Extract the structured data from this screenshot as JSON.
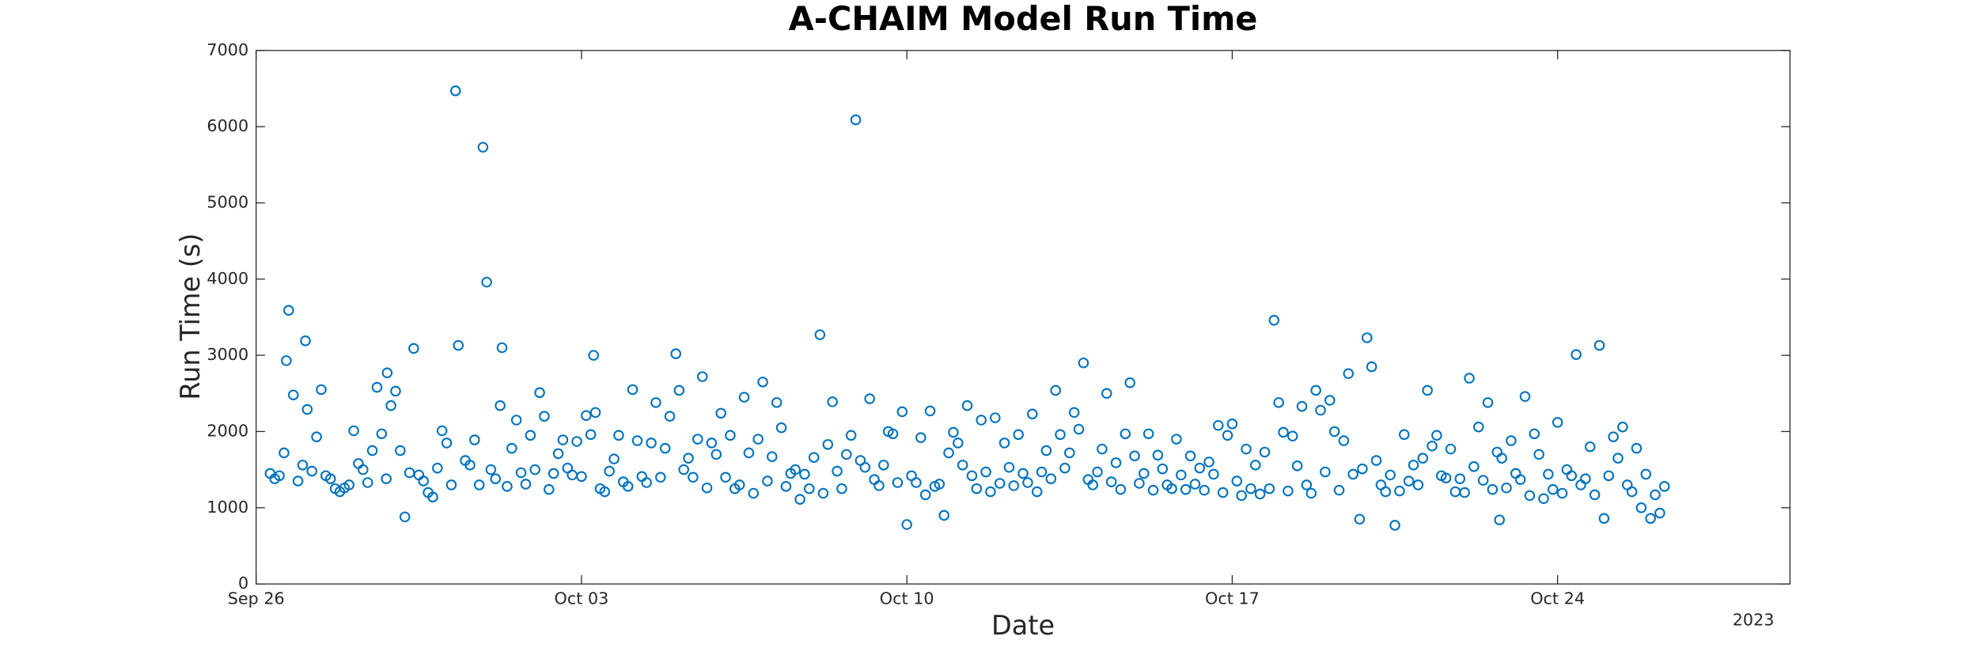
{
  "chart_data": {
    "type": "scatter",
    "title": "A-CHAIM Model Run Time",
    "xlabel": "Date",
    "ylabel": "Run Time (s)",
    "x_axis_year": "2023",
    "color": "#0072bd",
    "grid": false,
    "xlim": [
      0,
      33
    ],
    "xticks": [
      {
        "value": 0,
        "label": "Sep 26"
      },
      {
        "value": 7,
        "label": "Oct 03"
      },
      {
        "value": 14,
        "label": "Oct 10"
      },
      {
        "value": 21,
        "label": "Oct 17"
      },
      {
        "value": 28,
        "label": "Oct 24"
      }
    ],
    "ylim": [
      0,
      7000
    ],
    "yticks": [
      0,
      1000,
      2000,
      3000,
      4000,
      5000,
      6000,
      7000
    ],
    "x": [
      0.3,
      0.4,
      0.5,
      0.6,
      0.65,
      0.7,
      0.8,
      0.9,
      1.0,
      1.06,
      1.1,
      1.2,
      1.3,
      1.4,
      1.5,
      1.6,
      1.7,
      1.8,
      1.9,
      2.0,
      2.1,
      2.2,
      2.3,
      2.4,
      2.5,
      2.6,
      2.7,
      2.8,
      2.82,
      2.9,
      3.0,
      3.1,
      3.2,
      3.3,
      3.39,
      3.5,
      3.6,
      3.7,
      3.8,
      3.9,
      4.0,
      4.1,
      4.2,
      4.29,
      4.35,
      4.5,
      4.6,
      4.7,
      4.8,
      4.88,
      4.96,
      5.05,
      5.15,
      5.25,
      5.29,
      5.4,
      5.5,
      5.6,
      5.7,
      5.8,
      5.9,
      6.0,
      6.1,
      6.2,
      6.3,
      6.4,
      6.5,
      6.6,
      6.7,
      6.8,
      6.9,
      7.0,
      7.1,
      7.2,
      7.26,
      7.3,
      7.4,
      7.5,
      7.6,
      7.7,
      7.8,
      7.9,
      8.0,
      8.1,
      8.2,
      8.3,
      8.4,
      8.5,
      8.6,
      8.7,
      8.8,
      8.9,
      9.03,
      9.1,
      9.2,
      9.3,
      9.4,
      9.5,
      9.6,
      9.7,
      9.8,
      9.9,
      10.0,
      10.1,
      10.2,
      10.3,
      10.4,
      10.5,
      10.6,
      10.7,
      10.8,
      10.9,
      11.0,
      11.1,
      11.2,
      11.3,
      11.4,
      11.5,
      11.6,
      11.7,
      11.8,
      11.9,
      12.0,
      12.13,
      12.2,
      12.3,
      12.4,
      12.5,
      12.6,
      12.7,
      12.8,
      12.9,
      13.0,
      13.1,
      13.2,
      13.3,
      13.4,
      13.5,
      13.6,
      13.7,
      13.8,
      13.9,
      14.0,
      14.1,
      14.2,
      14.3,
      14.4,
      14.5,
      14.6,
      14.7,
      14.8,
      14.9,
      15.0,
      15.1,
      15.2,
      15.3,
      15.4,
      15.5,
      15.6,
      15.7,
      15.8,
      15.9,
      16.0,
      16.1,
      16.2,
      16.3,
      16.4,
      16.5,
      16.6,
      16.7,
      16.8,
      16.9,
      17.0,
      17.1,
      17.2,
      17.3,
      17.4,
      17.5,
      17.6,
      17.7,
      17.8,
      17.9,
      18.0,
      18.1,
      18.2,
      18.3,
      18.4,
      18.5,
      18.6,
      18.7,
      18.8,
      18.9,
      19.0,
      19.1,
      19.2,
      19.3,
      19.4,
      19.5,
      19.6,
      19.7,
      19.8,
      19.9,
      20.0,
      20.1,
      20.2,
      20.3,
      20.4,
      20.5,
      20.6,
      20.7,
      20.8,
      20.9,
      21.0,
      21.1,
      21.2,
      21.3,
      21.4,
      21.5,
      21.6,
      21.7,
      21.8,
      21.9,
      22.0,
      22.1,
      22.2,
      22.3,
      22.4,
      22.5,
      22.6,
      22.7,
      22.8,
      22.9,
      23.0,
      23.1,
      23.2,
      23.3,
      23.4,
      23.5,
      23.6,
      23.74,
      23.8,
      23.9,
      24.0,
      24.1,
      24.2,
      24.3,
      24.4,
      24.5,
      24.6,
      24.7,
      24.8,
      24.9,
      25.0,
      25.1,
      25.2,
      25.3,
      25.4,
      25.5,
      25.6,
      25.7,
      25.8,
      25.9,
      26.0,
      26.1,
      26.2,
      26.3,
      26.4,
      26.5,
      26.6,
      26.7,
      26.75,
      26.8,
      26.9,
      27.0,
      27.1,
      27.2,
      27.3,
      27.4,
      27.5,
      27.6,
      27.7,
      27.8,
      27.9,
      28.0,
      28.1,
      28.2,
      28.3,
      28.4,
      28.5,
      28.6,
      28.7,
      28.8,
      28.9,
      29.0,
      29.1,
      29.2,
      29.3,
      29.4,
      29.5,
      29.6,
      29.7,
      29.8,
      29.9,
      30.0,
      30.1,
      30.2,
      30.3
    ],
    "values": [
      1450,
      1380,
      1420,
      1720,
      2930,
      3590,
      2480,
      1350,
      1560,
      3190,
      2290,
      1480,
      1930,
      2550,
      1420,
      1380,
      1250,
      1210,
      1260,
      1300,
      2010,
      1580,
      1500,
      1330,
      1750,
      2580,
      1970,
      1380,
      2770,
      2340,
      2530,
      1750,
      880,
      1460,
      3090,
      1430,
      1350,
      1200,
      1140,
      1520,
      2010,
      1850,
      1300,
      6470,
      3130,
      1620,
      1560,
      1890,
      1300,
      5730,
      3960,
      1500,
      1380,
      2340,
      3100,
      1280,
      1780,
      2150,
      1460,
      1310,
      1950,
      1500,
      2510,
      2200,
      1240,
      1450,
      1710,
      1890,
      1520,
      1430,
      1870,
      1410,
      2210,
      1960,
      3000,
      2250,
      1250,
      1210,
      1480,
      1640,
      1950,
      1340,
      1280,
      2550,
      1880,
      1410,
      1330,
      1850,
      2380,
      1400,
      1780,
      2200,
      3020,
      2540,
      1500,
      1650,
      1400,
      1900,
      2720,
      1260,
      1850,
      1700,
      2240,
      1400,
      1950,
      1250,
      1300,
      2450,
      1720,
      1190,
      1900,
      2650,
      1350,
      1670,
      2380,
      2050,
      1280,
      1450,
      1500,
      1110,
      1440,
      1250,
      1660,
      3270,
      1190,
      1830,
      2390,
      1480,
      1250,
      1700,
      1950,
      6090,
      1620,
      1530,
      2430,
      1370,
      1290,
      1560,
      2000,
      1970,
      1330,
      2260,
      780,
      1420,
      1330,
      1920,
      1170,
      2270,
      1280,
      1310,
      900,
      1720,
      1990,
      1850,
      1560,
      2340,
      1420,
      1250,
      2150,
      1470,
      1210,
      2180,
      1320,
      1850,
      1530,
      1290,
      1960,
      1450,
      1330,
      2230,
      1210,
      1470,
      1750,
      1380,
      2540,
      1960,
      1520,
      1720,
      2250,
      2030,
      2900,
      1370,
      1300,
      1470,
      1770,
      2500,
      1340,
      1590,
      1240,
      1970,
      2640,
      1680,
      1320,
      1450,
      1970,
      1230,
      1690,
      1510,
      1300,
      1250,
      1900,
      1430,
      1240,
      1680,
      1310,
      1520,
      1230,
      1600,
      1440,
      2080,
      1200,
      1950,
      2100,
      1350,
      1160,
      1770,
      1250,
      1560,
      1180,
      1730,
      1250,
      3460,
      2380,
      1990,
      1220,
      1940,
      1550,
      2330,
      1300,
      1190,
      2540,
      2280,
      1470,
      2410,
      2000,
      1230,
      1880,
      2760,
      1440,
      850,
      1510,
      3230,
      2850,
      1620,
      1300,
      1210,
      1430,
      770,
      1220,
      1960,
      1350,
      1560,
      1300,
      1650,
      2540,
      1810,
      1950,
      1420,
      1390,
      1770,
      1210,
      1380,
      1200,
      2700,
      1540,
      2060,
      1360,
      2380,
      1240,
      1730,
      840,
      1650,
      1260,
      1880,
      1450,
      1370,
      2460,
      1160,
      1970,
      1700,
      1120,
      1440,
      1240,
      2120,
      1190,
      1500,
      1420,
      3010,
      1300,
      1380,
      1800,
      1170,
      3130,
      860,
      1420,
      1930,
      1650,
      2060,
      1300,
      1210,
      1780,
      1000,
      1440,
      860,
      1170,
      930,
      1280
    ]
  }
}
